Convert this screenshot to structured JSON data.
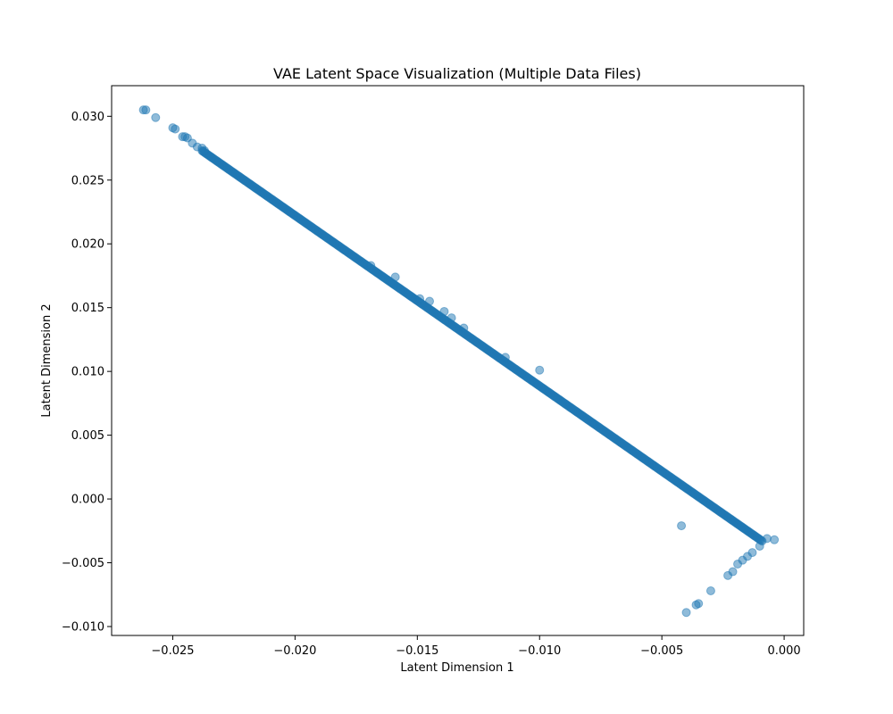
{
  "chart_data": {
    "type": "scatter",
    "title": "VAE Latent Space Visualization (Multiple Data Files)",
    "xlabel": "Latent Dimension 1",
    "ylabel": "Latent Dimension 2",
    "xlim": [
      -0.0275,
      0.0008
    ],
    "ylim": [
      -0.0107,
      0.0324
    ],
    "xticks": [
      -0.025,
      -0.02,
      -0.015,
      -0.01,
      -0.005,
      0.0
    ],
    "xtick_labels": [
      "−0.025",
      "−0.020",
      "−0.015",
      "−0.010",
      "−0.005",
      "0.000"
    ],
    "yticks": [
      -0.01,
      -0.005,
      0.0,
      0.005,
      0.01,
      0.015,
      0.02,
      0.025,
      0.03
    ],
    "ytick_labels": [
      "−0.010",
      "−0.005",
      "0.000",
      "0.005",
      "0.010",
      "0.015",
      "0.020",
      "0.025",
      "0.030"
    ],
    "grid": false,
    "legend": "none",
    "marker_color": "#1f77b4",
    "marker_alpha": 0.5,
    "dense_segment": {
      "from": [
        -0.0238,
        0.0273
      ],
      "to": [
        -0.0009,
        -0.0033
      ]
    },
    "points": [
      [
        -0.0262,
        0.0305
      ],
      [
        -0.0261,
        0.0305
      ],
      [
        -0.0257,
        0.0299
      ],
      [
        -0.025,
        0.0291
      ],
      [
        -0.0249,
        0.029
      ],
      [
        -0.0246,
        0.0284
      ],
      [
        -0.0245,
        0.0284
      ],
      [
        -0.0244,
        0.0283
      ],
      [
        -0.0242,
        0.0279
      ],
      [
        -0.024,
        0.0276
      ],
      [
        -0.0238,
        0.0275
      ],
      [
        -0.0237,
        0.0273
      ],
      [
        -0.0169,
        0.0183
      ],
      [
        -0.0159,
        0.0174
      ],
      [
        -0.0149,
        0.0157
      ],
      [
        -0.0145,
        0.0155
      ],
      [
        -0.0139,
        0.0147
      ],
      [
        -0.0136,
        0.0142
      ],
      [
        -0.0131,
        0.0134
      ],
      [
        -0.0114,
        0.0111
      ],
      [
        -0.01,
        0.0101
      ],
      [
        -0.0042,
        -0.0021
      ],
      [
        -0.0007,
        -0.0031
      ],
      [
        -0.0004,
        -0.0032
      ],
      [
        -0.001,
        -0.0037
      ],
      [
        -0.0013,
        -0.0042
      ],
      [
        -0.0015,
        -0.0045
      ],
      [
        -0.0017,
        -0.0048
      ],
      [
        -0.0019,
        -0.0051
      ],
      [
        -0.0021,
        -0.0057
      ],
      [
        -0.0023,
        -0.006
      ],
      [
        -0.003,
        -0.0072
      ],
      [
        -0.0035,
        -0.0082
      ],
      [
        -0.0036,
        -0.0083
      ],
      [
        -0.004,
        -0.0089
      ]
    ]
  }
}
